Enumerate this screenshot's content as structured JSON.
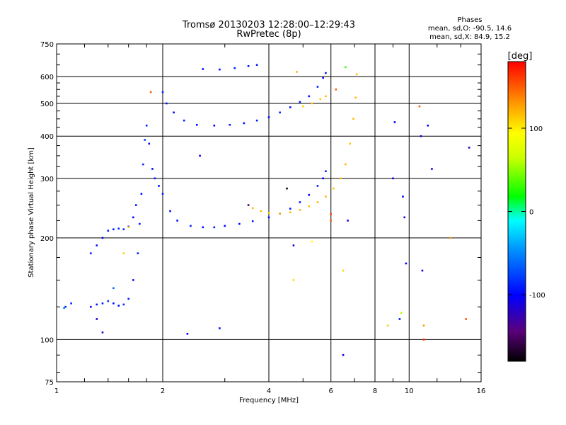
{
  "chart_data": {
    "type": "scatter",
    "title": "Tromsø 20130203 12:28:00–12:29:43",
    "subtitle": "RwPretec (8p)",
    "xlabel": "Frequency [MHz]",
    "ylabel": "Stationary phase Virtual Height [km]",
    "x_scale": "log",
    "y_scale": "log",
    "xlim": [
      1,
      16
    ],
    "ylim": [
      75,
      750
    ],
    "x_ticks": [
      1,
      2,
      4,
      6,
      8,
      10,
      16
    ],
    "x_tick_labels": [
      "1",
      "2",
      "4",
      "6",
      "8",
      "10",
      "16"
    ],
    "y_ticks": [
      75,
      100,
      200,
      300,
      400,
      500,
      600,
      750
    ],
    "y_tick_labels": [
      "75",
      "100",
      "200",
      "300",
      "400",
      "500",
      "600",
      "750"
    ],
    "grid": true,
    "stats": {
      "heading": "Phases",
      "o_line": "mean, sd,O: -90.5, 14.6",
      "x_line": "mean, sd,X: 84.9, 15.2"
    },
    "colorbar": {
      "label": "[deg]",
      "range": [
        -180,
        180
      ],
      "ticks": [
        100,
        0,
        -100
      ],
      "tick_labels": [
        "100",
        "0",
        "-100"
      ]
    },
    "series": [
      {
        "points": [
          [
            1.06,
            125,
            -90
          ],
          [
            1.1,
            128,
            -85
          ],
          [
            1.25,
            125,
            -100
          ],
          [
            1.3,
            127,
            -95
          ],
          [
            1.35,
            128,
            -90
          ],
          [
            1.4,
            130,
            -80
          ],
          [
            1.45,
            128,
            -95
          ],
          [
            1.5,
            126,
            -100
          ],
          [
            1.55,
            127,
            -85
          ],
          [
            1.6,
            132,
            -90
          ],
          [
            1.65,
            150,
            -95
          ],
          [
            1.7,
            180,
            -85
          ],
          [
            1.72,
            220,
            -90
          ],
          [
            1.74,
            270,
            -95
          ],
          [
            1.76,
            330,
            -85
          ],
          [
            1.78,
            390,
            -80
          ],
          [
            1.8,
            430,
            -90
          ],
          [
            1.83,
            380,
            -95
          ],
          [
            1.87,
            320,
            -100
          ],
          [
            1.9,
            300,
            -90
          ],
          [
            1.95,
            285,
            -95
          ],
          [
            1.25,
            180,
            -90
          ],
          [
            1.3,
            190,
            -95
          ],
          [
            1.35,
            200,
            -100
          ],
          [
            1.4,
            210,
            -90
          ],
          [
            1.45,
            212,
            -95
          ],
          [
            1.5,
            213,
            -85
          ],
          [
            1.55,
            212,
            -90
          ],
          [
            1.6,
            216,
            -95
          ],
          [
            1.65,
            230,
            -100
          ],
          [
            1.68,
            250,
            -90
          ],
          [
            2.0,
            270,
            -90
          ],
          [
            2.1,
            240,
            -95
          ],
          [
            2.2,
            225,
            -100
          ],
          [
            2.4,
            217,
            -90
          ],
          [
            2.6,
            215,
            -95
          ],
          [
            2.8,
            215,
            -90
          ],
          [
            3.0,
            217,
            -100
          ],
          [
            3.3,
            220,
            -95
          ],
          [
            3.6,
            224,
            -90
          ],
          [
            4.0,
            230,
            -95
          ],
          [
            4.3,
            236,
            -90
          ],
          [
            4.6,
            244,
            -95
          ],
          [
            4.9,
            255,
            -90
          ],
          [
            5.2,
            268,
            -95
          ],
          [
            5.5,
            285,
            -90
          ],
          [
            5.7,
            300,
            -100
          ],
          [
            5.8,
            315,
            -90
          ],
          [
            2.0,
            540,
            -90
          ],
          [
            2.05,
            500,
            -95
          ],
          [
            2.15,
            470,
            -100
          ],
          [
            2.3,
            445,
            -90
          ],
          [
            2.5,
            432,
            -95
          ],
          [
            2.8,
            430,
            -100
          ],
          [
            3.1,
            432,
            -90
          ],
          [
            3.4,
            437,
            -95
          ],
          [
            3.7,
            445,
            -90
          ],
          [
            4.0,
            455,
            -95
          ],
          [
            4.3,
            470,
            -90
          ],
          [
            4.6,
            487,
            -95
          ],
          [
            4.9,
            505,
            -90
          ],
          [
            5.2,
            525,
            -95
          ],
          [
            5.5,
            560,
            -90
          ],
          [
            5.7,
            595,
            -100
          ],
          [
            5.8,
            615,
            -90
          ],
          [
            2.6,
            632,
            -95
          ],
          [
            2.9,
            630,
            -100
          ],
          [
            3.2,
            636,
            -90
          ],
          [
            3.5,
            645,
            -95
          ],
          [
            3.7,
            650,
            -90
          ]
        ]
      },
      {
        "points": [
          [
            3.6,
            245,
            120
          ],
          [
            3.8,
            240,
            118
          ],
          [
            4.0,
            237,
            115
          ],
          [
            4.3,
            236,
            120
          ],
          [
            4.6,
            238,
            118
          ],
          [
            4.9,
            242,
            120
          ],
          [
            5.2,
            248,
            115
          ],
          [
            5.5,
            255,
            118
          ],
          [
            5.8,
            265,
            120
          ],
          [
            6.1,
            280,
            115
          ],
          [
            6.4,
            300,
            118
          ],
          [
            6.6,
            330,
            120
          ],
          [
            6.8,
            380,
            115
          ],
          [
            6.95,
            450,
            118
          ],
          [
            7.05,
            520,
            120
          ],
          [
            7.1,
            610,
            115
          ],
          [
            5.0,
            490,
            110
          ],
          [
            5.3,
            500,
            115
          ],
          [
            5.6,
            515,
            112
          ],
          [
            5.8,
            525,
            118
          ]
        ]
      }
    ],
    "scatter_noise": [
      [
        1.05,
        124,
        -50
      ],
      [
        1.3,
        115,
        -110
      ],
      [
        1.35,
        105,
        -120
      ],
      [
        1.45,
        142,
        -60
      ],
      [
        1.55,
        180,
        110
      ],
      [
        1.6,
        215,
        110
      ],
      [
        1.85,
        540,
        150
      ],
      [
        2.35,
        104,
        -100
      ],
      [
        2.55,
        350,
        -110
      ],
      [
        2.9,
        108,
        -95
      ],
      [
        3.5,
        250,
        -150
      ],
      [
        4.5,
        280,
        -170
      ],
      [
        4.7,
        190,
        -110
      ],
      [
        4.7,
        150,
        110
      ],
      [
        4.8,
        620,
        120
      ],
      [
        5.3,
        195,
        90
      ],
      [
        6.0,
        235,
        160
      ],
      [
        6.0,
        225,
        150
      ],
      [
        6.2,
        550,
        150
      ],
      [
        6.5,
        160,
        110
      ],
      [
        6.5,
        90,
        -110
      ],
      [
        6.6,
        640,
        30
      ],
      [
        6.7,
        225,
        -110
      ],
      [
        8.7,
        110,
        110
      ],
      [
        9.0,
        300,
        -110
      ],
      [
        9.1,
        440,
        -100
      ],
      [
        9.4,
        115,
        -95
      ],
      [
        9.5,
        120,
        60
      ],
      [
        9.6,
        265,
        -100
      ],
      [
        9.7,
        230,
        -110
      ],
      [
        9.8,
        168,
        -100
      ],
      [
        10.7,
        490,
        150
      ],
      [
        10.8,
        400,
        -110
      ],
      [
        10.9,
        160,
        -110
      ],
      [
        11.0,
        110,
        130
      ],
      [
        11.0,
        100,
        170
      ],
      [
        11.3,
        430,
        -100
      ],
      [
        11.6,
        320,
        -110
      ],
      [
        13.1,
        200,
        130
      ],
      [
        14.5,
        115,
        150
      ],
      [
        14.8,
        370,
        -120
      ]
    ]
  }
}
